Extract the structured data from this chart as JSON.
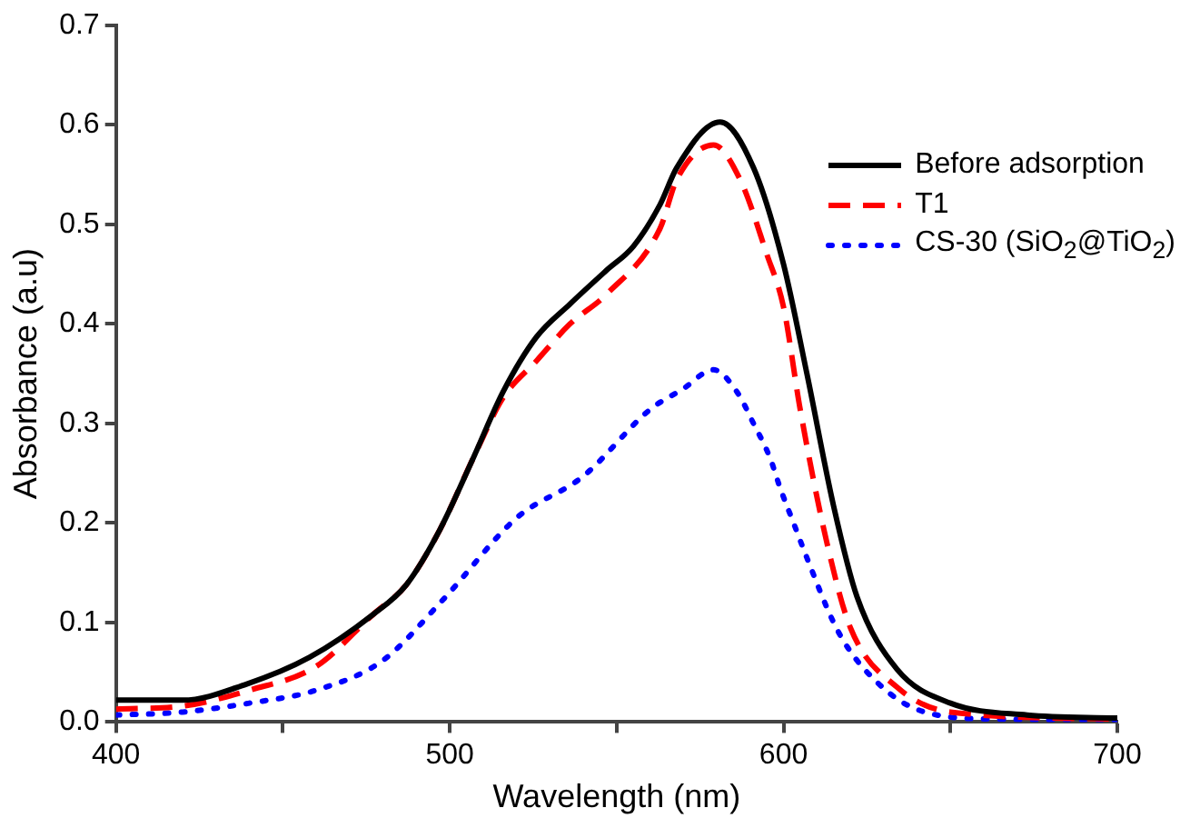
{
  "chart_data": {
    "type": "line",
    "xlabel": "Wavelength (nm)",
    "ylabel": "Absorbance (a.u)",
    "xlim": [
      400,
      700
    ],
    "xticks": [
      400,
      {
        "value": 450,
        "label": null
      },
      500,
      {
        "value": 550,
        "label": null
      },
      600,
      {
        "value": 650,
        "label": null
      },
      700
    ],
    "ylim": [
      0,
      0.7
    ],
    "yticks": [
      {
        "value": 0,
        "label": "0.0"
      },
      0.1,
      0.2,
      0.3,
      0.4,
      0.5,
      0.6,
      0.7
    ],
    "grid": false,
    "legend": "top right",
    "marker": "none",
    "series": [
      {
        "name": "Before adsorption",
        "color": "#000000",
        "line_style": "solid",
        "x": [
          400,
          420,
          439,
          458,
          477,
          487,
          497,
          507,
          516,
          526,
          536,
          547,
          555,
          563,
          568,
          581,
          591,
          600,
          607,
          615,
          622,
          634,
          650,
          673,
          700
        ],
        "values": [
          0.022,
          0.022,
          0.038,
          0.065,
          0.108,
          0.138,
          0.193,
          0.265,
          0.332,
          0.387,
          0.42,
          0.454,
          0.478,
          0.52,
          0.557,
          0.603,
          0.557,
          0.46,
          0.35,
          0.217,
          0.126,
          0.053,
          0.019,
          0.007,
          0.004
        ]
      },
      {
        "name": "T1",
        "color": "#ff0000",
        "line_style": "dashed",
        "x": [
          400,
          420,
          440,
          460,
          477,
          487,
          497,
          507,
          516,
          526,
          536,
          547,
          563,
          568,
          579,
          587,
          595,
          600,
          605,
          613,
          620,
          634,
          650,
          700
        ],
        "values": [
          0.013,
          0.016,
          0.032,
          0.056,
          0.108,
          0.138,
          0.193,
          0.265,
          0.326,
          0.363,
          0.4,
          0.43,
          0.496,
          0.545,
          0.58,
          0.545,
          0.47,
          0.417,
          0.314,
          0.18,
          0.095,
          0.035,
          0.01,
          0.003
        ]
      },
      {
        "name": "CS-30 (SiO$_{2}$@TiO$_{2}$)",
        "color": "#0000ff",
        "line_style": "dotted",
        "x": [
          400,
          420,
          440,
          460,
          480,
          498,
          520,
          540,
          560,
          570,
          579,
          586,
          591,
          596,
          599,
          603,
          607,
          615,
          620,
          628,
          636,
          646,
          663,
          700
        ],
        "values": [
          0.007,
          0.01,
          0.019,
          0.032,
          0.062,
          0.123,
          0.205,
          0.247,
          0.314,
          0.335,
          0.354,
          0.332,
          0.3,
          0.265,
          0.235,
          0.2,
          0.165,
          0.1,
          0.071,
          0.04,
          0.019,
          0.007,
          0.003,
          0.002
        ]
      }
    ]
  }
}
